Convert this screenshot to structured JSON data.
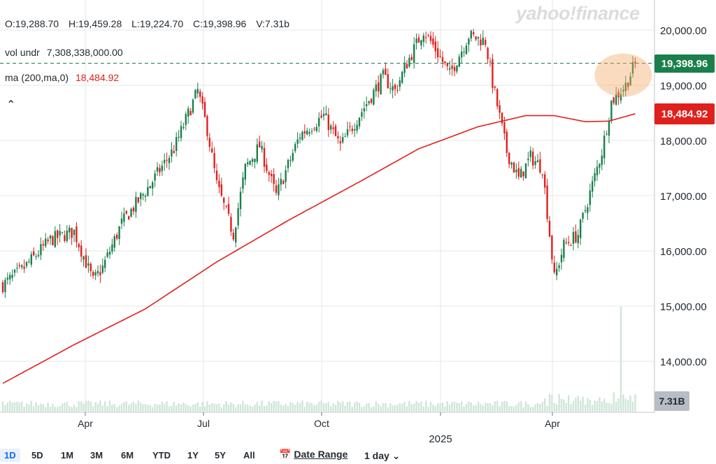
{
  "header": {
    "open": "O:19,288.70",
    "high": "H:19,459.28",
    "low": "L:19,224.70",
    "close": "C:19,398.96",
    "volume": "V:7.31b"
  },
  "indicators": {
    "vol_label": "vol undr",
    "vol_value": "7,308,338,000.00",
    "ma_label": "ma (200,ma,0)",
    "ma_value": "18,484.92"
  },
  "brand": "yahoo!finance",
  "collapse_icon": "chevron-up-icon",
  "price_badge": {
    "label": "19,398.96",
    "color": "#1a7f4b"
  },
  "ma_badge": {
    "label": "18,484.92",
    "color": "#e0201c"
  },
  "volume_badge": {
    "label": "7.31B",
    "color": "#b8bcc4"
  },
  "colors": {
    "up": "#1a7f4b",
    "down": "#e0201c",
    "ma": "#e0201c",
    "volume": "#cfe6d8"
  },
  "range_buttons": [
    "1D",
    "5D",
    "1M",
    "3M",
    "6M",
    "YTD",
    "1Y",
    "5Y",
    "All"
  ],
  "active_range": "1D",
  "date_range_label": "Date Range",
  "interval_label": "1 day",
  "chart_data": {
    "type": "candlestick",
    "y_ticks": [
      "20,000.00",
      "19,000.00",
      "18,000.00",
      "17,000.00",
      "16,000.00",
      "15,000.00",
      "14,000.00"
    ],
    "y_tick_values": [
      20000,
      19000,
      18000,
      17000,
      16000,
      15000,
      14000
    ],
    "ylim": [
      13200,
      20550
    ],
    "x_labels": [
      "Apr",
      "Jul",
      "Oct",
      "",
      "Apr"
    ],
    "year_label": "2025",
    "last_close": 19398.96,
    "ma200_last": 18484.92,
    "close_keypoints": [
      [
        0,
        15380
      ],
      [
        8,
        15650
      ],
      [
        20,
        16200
      ],
      [
        30,
        16350
      ],
      [
        38,
        15450
      ],
      [
        42,
        15700
      ],
      [
        50,
        16500
      ],
      [
        62,
        17200
      ],
      [
        72,
        17850
      ],
      [
        82,
        18900
      ],
      [
        86,
        18200
      ],
      [
        90,
        17200
      ],
      [
        97,
        16300
      ],
      [
        102,
        17500
      ],
      [
        108,
        17900
      ],
      [
        115,
        17000
      ],
      [
        125,
        18100
      ],
      [
        135,
        18450
      ],
      [
        142,
        17900
      ],
      [
        152,
        18600
      ],
      [
        160,
        19150
      ],
      [
        165,
        18900
      ],
      [
        170,
        19400
      ],
      [
        177,
        20000
      ],
      [
        182,
        19650
      ],
      [
        188,
        19200
      ],
      [
        196,
        19900
      ],
      [
        203,
        19800
      ],
      [
        206,
        19050
      ],
      [
        212,
        17800
      ],
      [
        217,
        17300
      ],
      [
        222,
        17700
      ],
      [
        227,
        17500
      ],
      [
        232,
        15500
      ],
      [
        236,
        16100
      ],
      [
        242,
        16300
      ],
      [
        248,
        17200
      ],
      [
        252,
        17800
      ],
      [
        256,
        18700
      ],
      [
        262,
        19000
      ],
      [
        266,
        19398.96
      ]
    ],
    "ma200_keypoints": [
      [
        0,
        13600
      ],
      [
        30,
        14300
      ],
      [
        60,
        14950
      ],
      [
        90,
        15800
      ],
      [
        120,
        16550
      ],
      [
        150,
        17250
      ],
      [
        175,
        17850
      ],
      [
        200,
        18250
      ],
      [
        220,
        18450
      ],
      [
        232,
        18450
      ],
      [
        245,
        18340
      ],
      [
        255,
        18350
      ],
      [
        266,
        18484.92
      ]
    ],
    "volume_spike_index": 260
  }
}
